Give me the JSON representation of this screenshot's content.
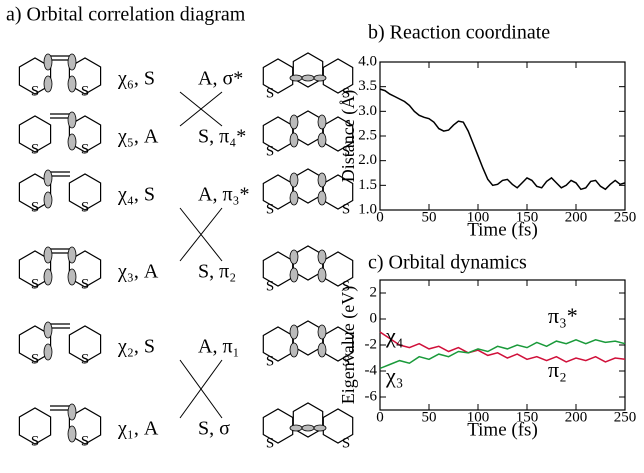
{
  "diagram": {
    "title": "a) Orbital correlation diagram",
    "atom_label": "S",
    "rows": [
      {
        "left": "χ₆, S",
        "right": "A, σ*"
      },
      {
        "left": "χ₅, A",
        "right": "S, π₄*"
      },
      {
        "left": "χ₄, S",
        "right": "A, π₃*"
      },
      {
        "left": "χ₃, A",
        "right": "S, π₂"
      },
      {
        "left": "χ₂, S",
        "right": "A, π₁"
      },
      {
        "left": "χ₁, A",
        "right": "S, σ"
      }
    ]
  },
  "chart_data": [
    {
      "type": "line",
      "title": "b) Reaction coordinate",
      "xlabel": "Time (fs)",
      "ylabel": "Distance (Å)",
      "x": [
        0,
        5,
        10,
        15,
        20,
        25,
        30,
        35,
        40,
        45,
        50,
        55,
        60,
        65,
        70,
        75,
        80,
        85,
        90,
        95,
        100,
        105,
        110,
        115,
        120,
        125,
        130,
        135,
        140,
        145,
        150,
        155,
        160,
        165,
        170,
        175,
        180,
        185,
        190,
        195,
        200,
        205,
        210,
        215,
        220,
        225,
        230,
        235,
        240,
        245,
        250
      ],
      "series": [
        {
          "color": "#000000",
          "values": [
            3.45,
            3.42,
            3.35,
            3.3,
            3.25,
            3.2,
            3.12,
            3.0,
            2.92,
            2.88,
            2.85,
            2.78,
            2.65,
            2.6,
            2.62,
            2.72,
            2.8,
            2.78,
            2.6,
            2.35,
            2.1,
            1.85,
            1.62,
            1.5,
            1.52,
            1.6,
            1.62,
            1.52,
            1.45,
            1.55,
            1.65,
            1.6,
            1.48,
            1.45,
            1.58,
            1.65,
            1.55,
            1.45,
            1.5,
            1.6,
            1.55,
            1.42,
            1.45,
            1.58,
            1.6,
            1.48,
            1.42,
            1.52,
            1.6,
            1.52,
            1.55
          ]
        }
      ],
      "xlim": [
        0,
        250
      ],
      "xticks": [
        0,
        50,
        100,
        150,
        200,
        250
      ],
      "ylim": [
        1,
        4
      ],
      "yticks": [
        {
          "value": 1,
          "label": "1.0"
        },
        {
          "value": 1.5,
          "label": "1.5"
        },
        {
          "value": 2,
          "label": "2.0"
        },
        {
          "value": 2.5,
          "label": "2.5"
        },
        {
          "value": 3,
          "label": "3.0"
        },
        {
          "value": 3.5,
          "label": "3.5"
        },
        {
          "value": 4,
          "label": "4.0"
        }
      ]
    },
    {
      "type": "line",
      "title": "c) Orbital dynamics",
      "xlabel": "Time (fs)",
      "ylabel": "Eigenvalue (eV)",
      "x": [
        0,
        10,
        20,
        30,
        40,
        50,
        60,
        70,
        80,
        90,
        100,
        110,
        120,
        130,
        140,
        150,
        160,
        170,
        180,
        190,
        200,
        210,
        220,
        230,
        240,
        250
      ],
      "series": [
        {
          "color": "#d0103a",
          "values": [
            -1.0,
            -1.5,
            -2.0,
            -2.2,
            -1.9,
            -2.3,
            -2.1,
            -2.5,
            -2.2,
            -2.6,
            -2.4,
            -2.8,
            -2.6,
            -3.0,
            -2.7,
            -3.1,
            -2.9,
            -3.2,
            -2.9,
            -3.3,
            -3.0,
            -3.2,
            -2.9,
            -3.3,
            -3.0,
            -3.1
          ]
        },
        {
          "color": "#1a9a3a",
          "values": [
            -3.8,
            -3.5,
            -3.2,
            -3.4,
            -2.9,
            -3.1,
            -2.7,
            -2.9,
            -2.5,
            -2.6,
            -2.3,
            -2.5,
            -2.1,
            -2.3,
            -2.0,
            -2.2,
            -1.8,
            -2.1,
            -1.7,
            -1.9,
            -1.6,
            -1.9,
            -1.6,
            -1.8,
            -1.7,
            -1.9
          ]
        }
      ],
      "annotations": [
        "χ₄",
        "χ₃",
        "π₃*",
        "π₂"
      ],
      "xlim": [
        0,
        250
      ],
      "xticks": [
        0,
        50,
        100,
        150,
        200,
        250
      ],
      "ylim": [
        -7,
        3
      ],
      "yticks": [
        -6,
        -4,
        -2,
        0,
        2
      ]
    }
  ]
}
